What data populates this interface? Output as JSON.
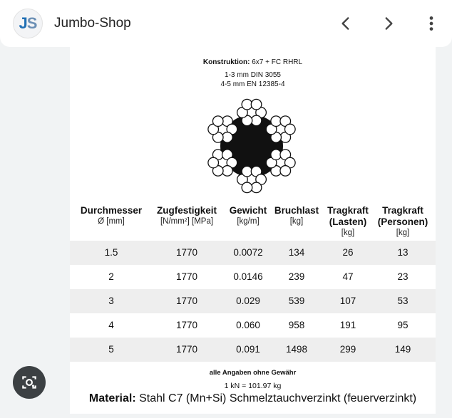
{
  "browser": {
    "site_name": "Jumbo-Shop",
    "logo_j": "J",
    "logo_s": "S",
    "icons": [
      "back-icon",
      "forward-icon",
      "more-vert-icon",
      "lens-icon"
    ]
  },
  "spec": {
    "construction_label": "Konstruktion:",
    "construction_value": "6x7 + FC RHRL",
    "norm_1": "1-3 mm DIN 3055",
    "norm_2": "4-5 mm  EN 12385-4"
  },
  "table": {
    "headers": [
      {
        "title": "Durchmesser",
        "unit": "Ø [mm]"
      },
      {
        "title": "Zugfestigkeit",
        "unit": "[N/mm²] [MPa]"
      },
      {
        "title": "Gewicht",
        "unit": "[kg/m]"
      },
      {
        "title": "Bruchlast",
        "unit": "[kg]"
      },
      {
        "title": "Tragkraft (Lasten)",
        "unit": "[kg]"
      },
      {
        "title": "Tragkraft (Personen)",
        "unit": "[kg]"
      }
    ],
    "rows": [
      [
        "1.5",
        "1770",
        "0.0072",
        "134",
        "26",
        "13"
      ],
      [
        "2",
        "1770",
        "0.0146",
        "239",
        "47",
        "23"
      ],
      [
        "3",
        "1770",
        "0.029",
        "539",
        "107",
        "53"
      ],
      [
        "4",
        "1770",
        "0.060",
        "958",
        "191",
        "95"
      ],
      [
        "5",
        "1770",
        "0.091",
        "1498",
        "299",
        "149"
      ]
    ]
  },
  "footer": {
    "disclaimer": "alle Angaben ohne Gewähr",
    "conversion": "1 kN = 101.97 kg",
    "material_label": "Material:",
    "material_value": "Stahl C7 (Mn+Si) Schmelztauchverzinkt (feuerverzinkt)"
  },
  "colors": {
    "logo_blue": "#1f6fb5",
    "row_shade": "#eeeeee",
    "lens_bg": "#3c4043"
  }
}
